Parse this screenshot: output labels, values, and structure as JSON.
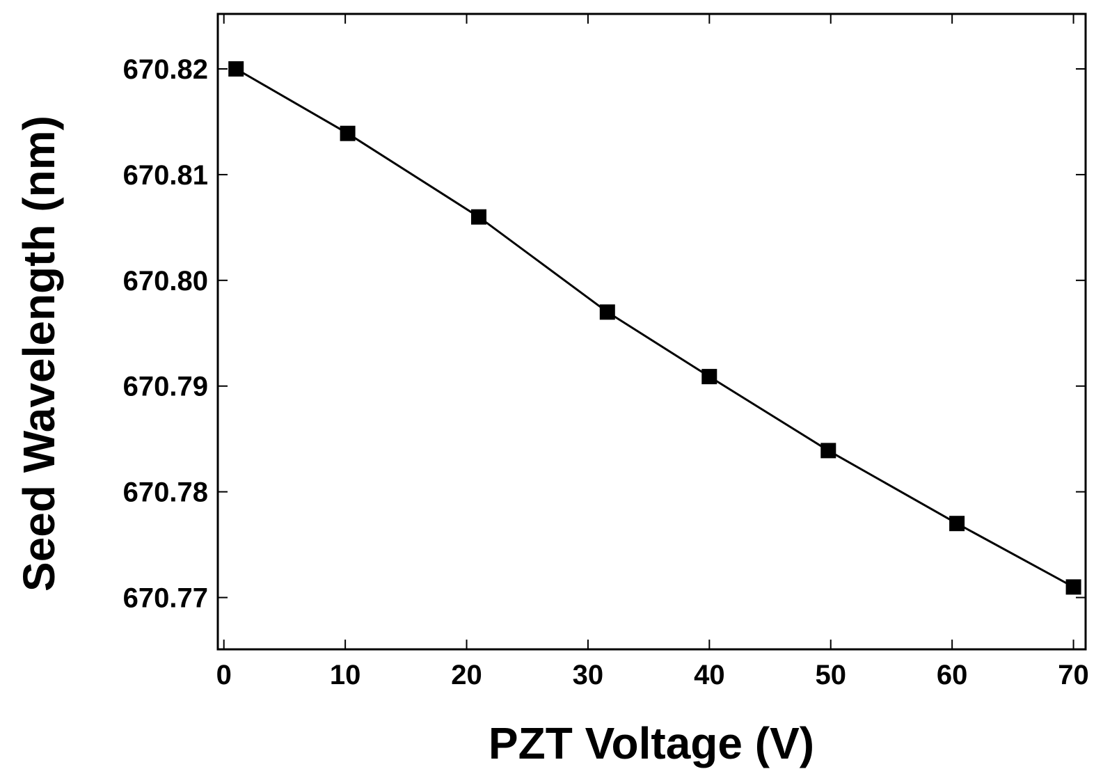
{
  "chart_data": {
    "type": "line",
    "title": "",
    "xlabel": "PZT Voltage (V)",
    "ylabel": "Seed Wavelength (nm)",
    "xlim": [
      -0.5,
      71
    ],
    "ylim": [
      670.7651,
      670.8252
    ],
    "xticks": [
      0,
      10,
      20,
      30,
      40,
      50,
      60,
      70
    ],
    "xtick_labels": [
      "0",
      "10",
      "20",
      "30",
      "40",
      "50",
      "60",
      "70"
    ],
    "yticks": [
      670.77,
      670.78,
      670.79,
      670.8,
      670.81,
      670.82
    ],
    "ytick_labels": [
      "670.77",
      "670.78",
      "670.79",
      "670.80",
      "670.81",
      "670.82"
    ],
    "grid": false,
    "marker": "square",
    "colors": {
      "line": "#000000",
      "marker": "#000000"
    },
    "series": [
      {
        "name": "Seed Wavelength",
        "x": [
          1,
          10.2,
          21,
          31.6,
          40,
          49.8,
          60.4,
          70
        ],
        "y": [
          670.82,
          670.8139,
          670.806,
          670.797,
          670.7909,
          670.7839,
          670.777,
          670.771
        ]
      }
    ]
  }
}
